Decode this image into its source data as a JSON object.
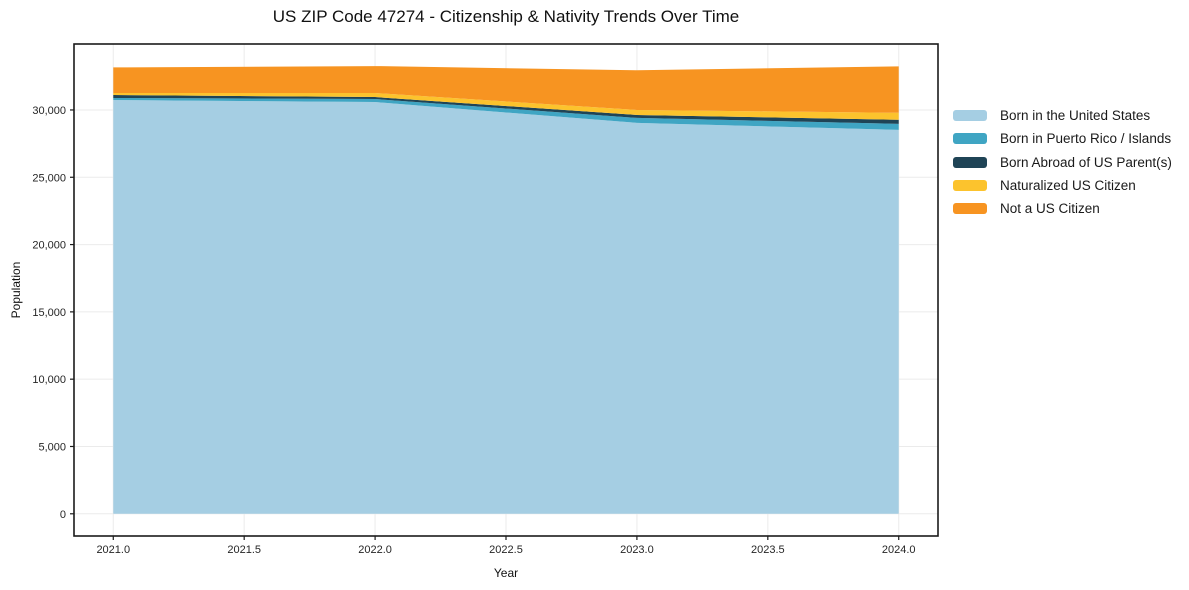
{
  "chart_data": {
    "type": "area",
    "stacked": true,
    "title": "US ZIP Code 47274 - Citizenship & Nativity Trends Over Time",
    "xlabel": "Year",
    "ylabel": "Population",
    "grid": true,
    "legend_position": "right-outside",
    "x": [
      2021,
      2022,
      2023,
      2024
    ],
    "series": [
      {
        "name": "Born in the United States",
        "color": "#A5CEE3",
        "values": [
          30740,
          30590,
          29040,
          28520
        ]
      },
      {
        "name": "Born in Puerto Rico / Islands",
        "color": "#3FA5C3",
        "values": [
          150,
          220,
          370,
          450
        ]
      },
      {
        "name": "Born Abroad of US Parent(s)",
        "color": "#1F4456",
        "values": [
          220,
          150,
          220,
          300
        ]
      },
      {
        "name": "Naturalized US Citizen",
        "color": "#FCC32D",
        "values": [
          150,
          300,
          370,
          520
        ]
      },
      {
        "name": "Not a US Citizen",
        "color": "#F79421",
        "values": [
          1900,
          2000,
          2950,
          3450
        ]
      }
    ],
    "xlim": [
      2020.85,
      2024.15
    ],
    "ylim": [
      -1650,
      34900
    ],
    "x_ticks": [
      {
        "v": 2021.0,
        "label": "2021.0"
      },
      {
        "v": 2021.5,
        "label": "2021.5"
      },
      {
        "v": 2022.0,
        "label": "2022.0"
      },
      {
        "v": 2022.5,
        "label": "2022.5"
      },
      {
        "v": 2023.0,
        "label": "2023.0"
      },
      {
        "v": 2023.5,
        "label": "2023.5"
      },
      {
        "v": 2024.0,
        "label": "2024.0"
      }
    ],
    "y_ticks": [
      {
        "v": 0,
        "label": "0"
      },
      {
        "v": 5000,
        "label": "5,000"
      },
      {
        "v": 10000,
        "label": "10,000"
      },
      {
        "v": 15000,
        "label": "15,000"
      },
      {
        "v": 20000,
        "label": "20,000"
      },
      {
        "v": 25000,
        "label": "25,000"
      },
      {
        "v": 30000,
        "label": "30,000"
      }
    ]
  }
}
